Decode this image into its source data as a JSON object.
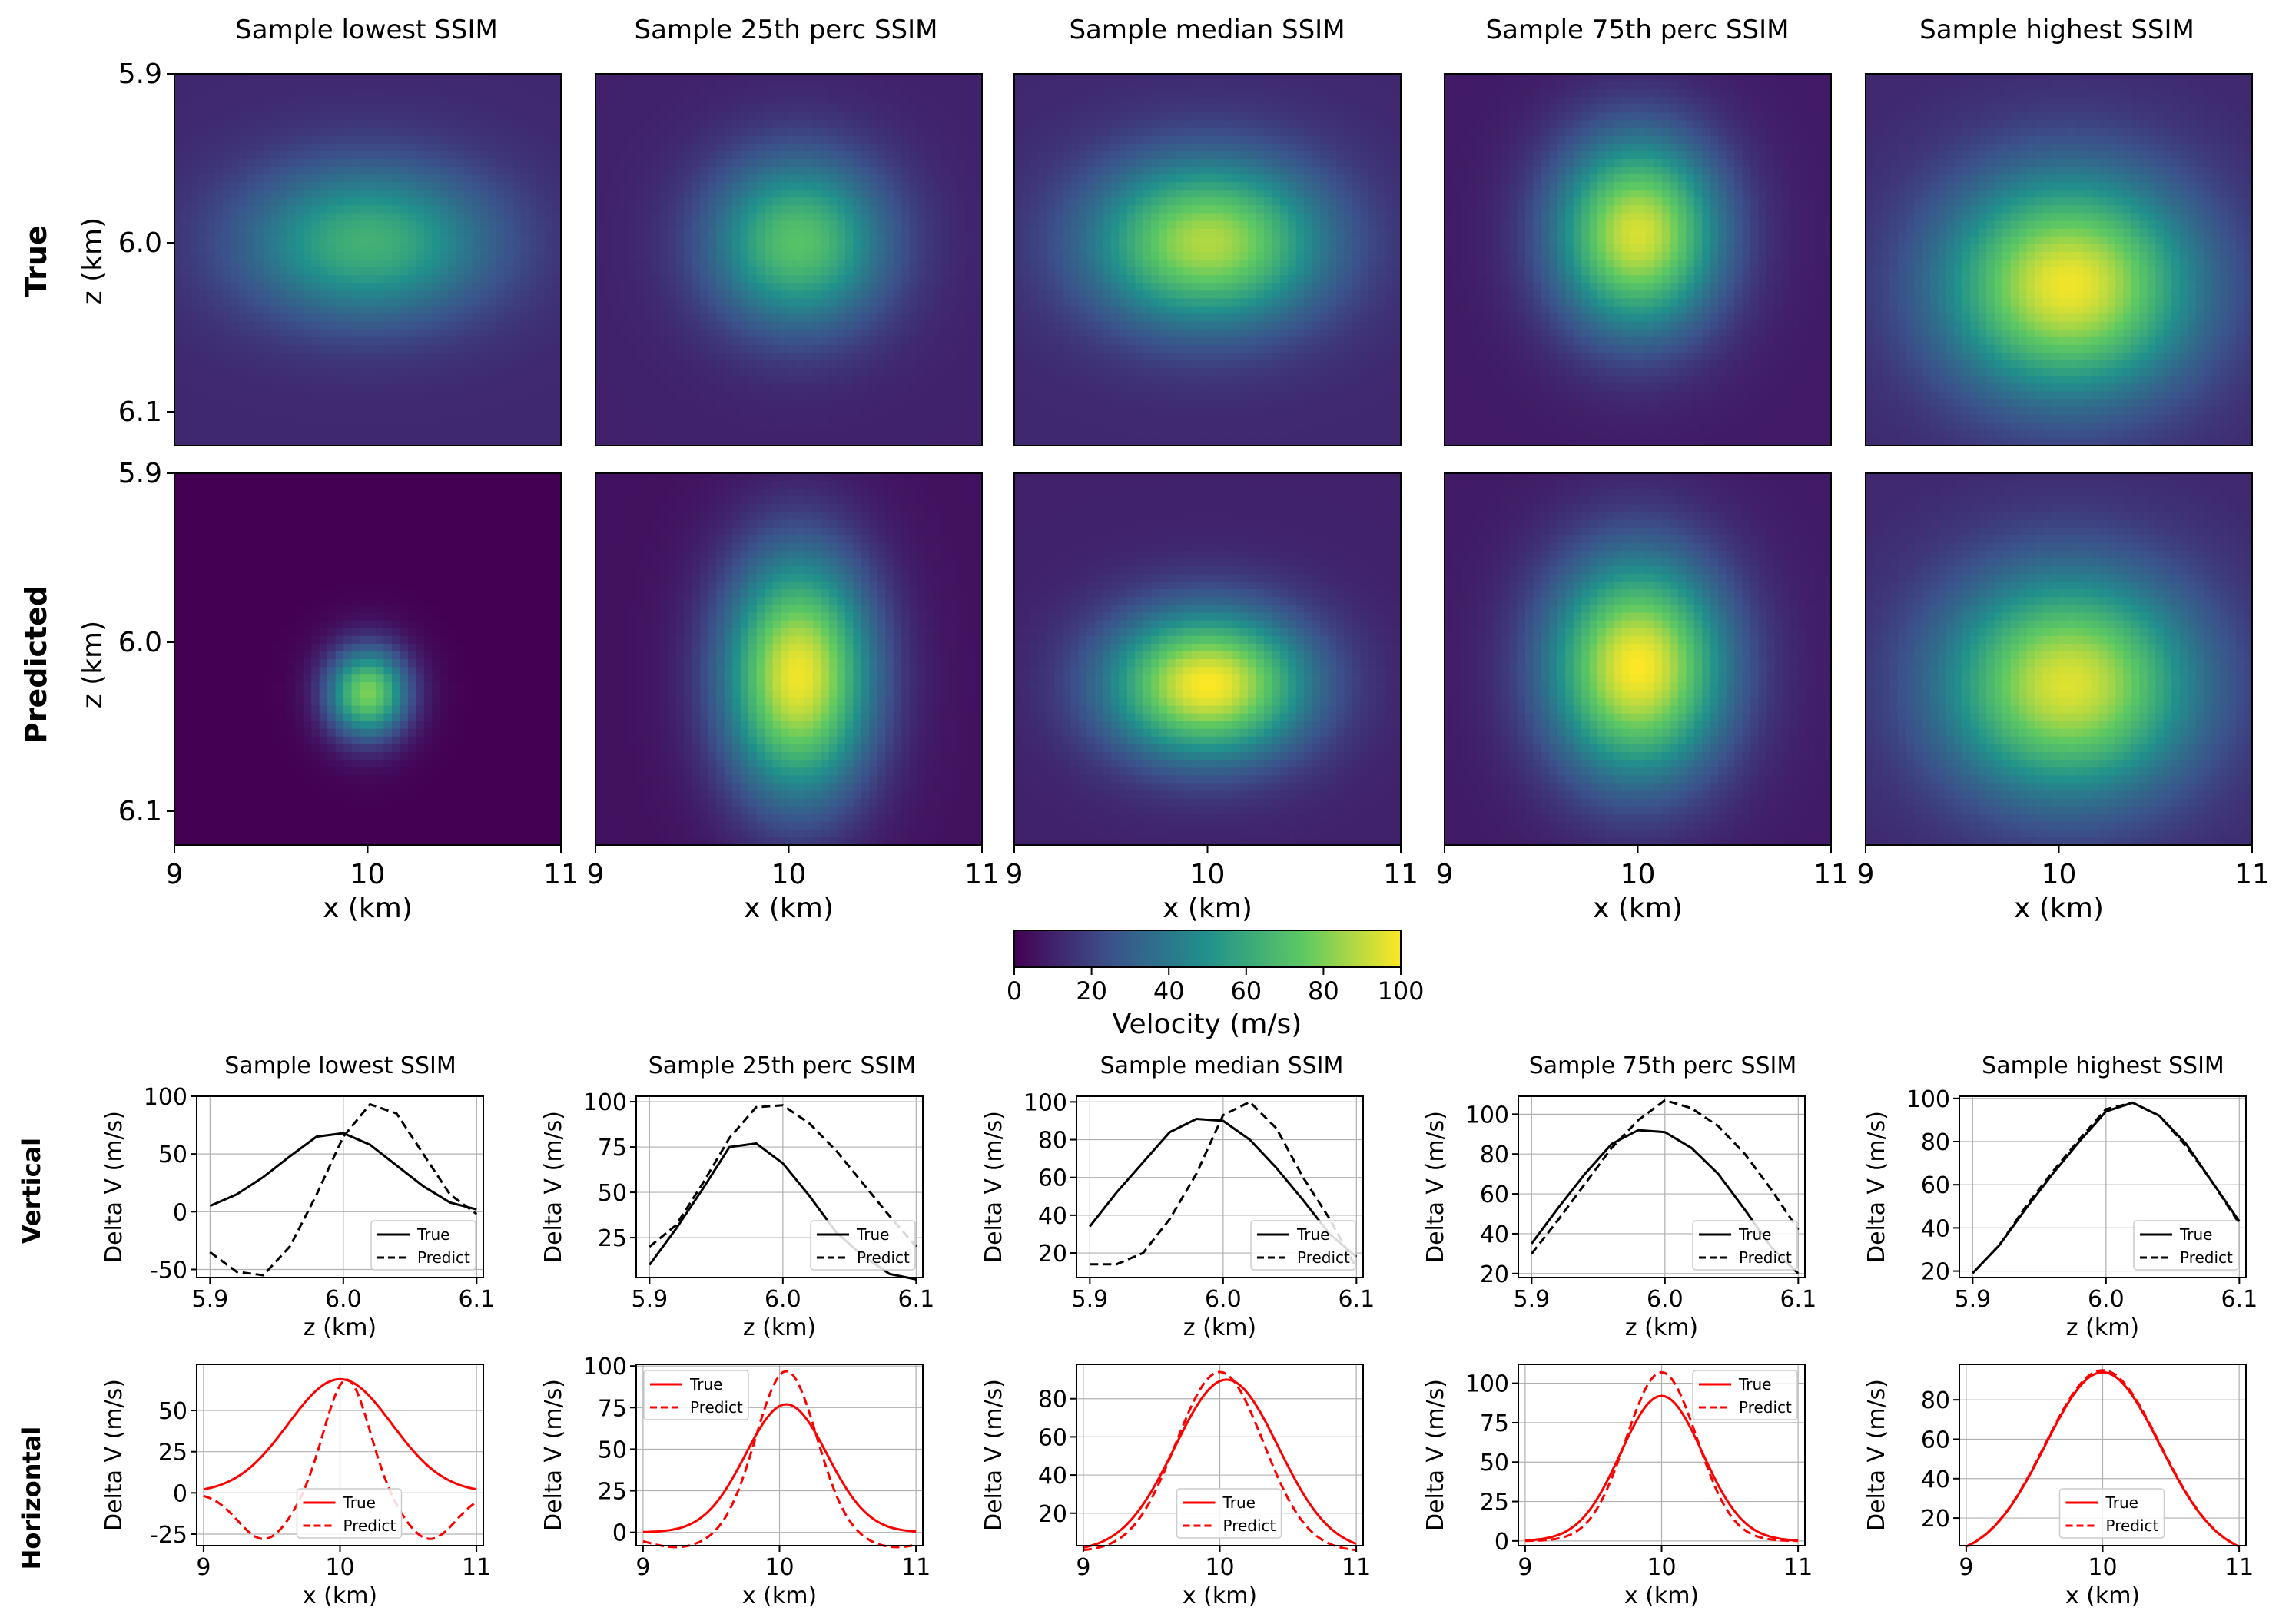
{
  "figure": {
    "column_titles": [
      "Sample lowest SSIM",
      "Sample 25th perc SSIM",
      "Sample median SSIM",
      "Sample 75th perc SSIM",
      "Sample highest SSIM"
    ],
    "row_labels": {
      "true": "True",
      "predicted": "Predicted",
      "vertical": "Vertical",
      "horizontal": "Horizontal"
    },
    "colorbar": {
      "label": "Velocity (m/s)",
      "ticks": [
        "0",
        "20",
        "40",
        "60",
        "80",
        "100"
      ],
      "range": [
        0,
        100
      ],
      "colormap": "viridis"
    }
  },
  "chart_data": [
    {
      "type": "heatmap",
      "group": "velocity-maps",
      "xlabel": "x (km)",
      "ylabel": "z (km)",
      "xlim": [
        9,
        11
      ],
      "zlim": [
        5.9,
        6.12
      ],
      "xticks": [
        "9",
        "10",
        "11"
      ],
      "zticks": [
        "5.9",
        "6.0",
        "6.1"
      ],
      "value_range": [
        0,
        100
      ],
      "colors": {
        "c0": "#440154",
        "c25": "#3b528b",
        "c50": "#21918c",
        "c75": "#5ec962",
        "c100": "#fde725"
      },
      "maps": [
        {
          "row": "true",
          "col": 0,
          "peak": 64,
          "cx": 10.0,
          "cz": 6.0,
          "sx": 0.45,
          "sz": 0.032,
          "floor": 12
        },
        {
          "row": "true",
          "col": 1,
          "peak": 72,
          "cx": 10.05,
          "cz": 6.0,
          "sx": 0.32,
          "sz": 0.035,
          "floor": 10
        },
        {
          "row": "true",
          "col": 2,
          "peak": 88,
          "cx": 10.0,
          "cz": 6.0,
          "sx": 0.42,
          "sz": 0.034,
          "floor": 12
        },
        {
          "row": "true",
          "col": 3,
          "peak": 94,
          "cx": 10.0,
          "cz": 5.995,
          "sx": 0.3,
          "sz": 0.04,
          "floor": 8
        },
        {
          "row": "true",
          "col": 4,
          "peak": 98,
          "cx": 10.05,
          "cz": 6.025,
          "sx": 0.45,
          "sz": 0.045,
          "floor": 12
        },
        {
          "row": "predicted",
          "col": 0,
          "peak": 80,
          "cx": 10.0,
          "cz": 6.03,
          "sx": 0.15,
          "sz": 0.019,
          "floor": 0
        },
        {
          "row": "predicted",
          "col": 1,
          "peak": 98,
          "cx": 10.05,
          "cz": 6.02,
          "sx": 0.27,
          "sz": 0.05,
          "floor": 5
        },
        {
          "row": "predicted",
          "col": 2,
          "peak": 100,
          "cx": 10.0,
          "cz": 6.025,
          "sx": 0.36,
          "sz": 0.03,
          "floor": 10
        },
        {
          "row": "predicted",
          "col": 3,
          "peak": 100,
          "cx": 10.0,
          "cz": 6.015,
          "sx": 0.32,
          "sz": 0.045,
          "floor": 8
        },
        {
          "row": "predicted",
          "col": 4,
          "peak": 95,
          "cx": 10.05,
          "cz": 6.025,
          "sx": 0.45,
          "sz": 0.045,
          "floor": 12
        }
      ]
    },
    {
      "type": "line",
      "group": "vertical-profiles",
      "xlabel": "z (km)",
      "ylabel": "Delta V (m/s)",
      "x": [
        5.9,
        5.92,
        5.94,
        5.96,
        5.98,
        6.0,
        6.02,
        6.04,
        6.06,
        6.08,
        6.1
      ],
      "xlim": [
        5.89,
        6.105
      ],
      "xticks": [
        "5.9",
        "6.0",
        "6.1"
      ],
      "line_color": "#000000",
      "legend": [
        "True",
        "Predict"
      ],
      "panels": [
        {
          "ylim": [
            -57,
            100
          ],
          "yticks": [
            -50,
            0,
            50,
            100
          ],
          "true": [
            5,
            15,
            30,
            48,
            65,
            68,
            58,
            40,
            22,
            8,
            2
          ],
          "predict": [
            -35,
            -52,
            -55,
            -30,
            15,
            65,
            93,
            85,
            50,
            15,
            -2
          ]
        },
        {
          "ylim": [
            3,
            103
          ],
          "yticks": [
            25,
            50,
            75,
            100
          ],
          "true": [
            10,
            30,
            52,
            75,
            77,
            66,
            48,
            28,
            15,
            5,
            2
          ],
          "predict": [
            20,
            32,
            55,
            80,
            97,
            98,
            88,
            73,
            55,
            37,
            20
          ]
        },
        {
          "ylim": [
            7,
            103
          ],
          "yticks": [
            20,
            40,
            60,
            80,
            100
          ],
          "true": [
            34,
            52,
            68,
            84,
            91,
            90,
            80,
            65,
            48,
            30,
            18
          ],
          "predict": [
            14,
            14,
            20,
            38,
            62,
            93,
            100,
            86,
            60,
            38,
            12
          ]
        },
        {
          "ylim": [
            18,
            109
          ],
          "yticks": [
            20,
            40,
            60,
            80,
            100
          ],
          "true": [
            35,
            53,
            70,
            85,
            92,
            91,
            83,
            70,
            52,
            33,
            20
          ],
          "predict": [
            30,
            47,
            65,
            83,
            97,
            107,
            103,
            94,
            80,
            62,
            42
          ]
        },
        {
          "ylim": [
            17,
            101
          ],
          "yticks": [
            20,
            40,
            60,
            80,
            100
          ],
          "true": [
            19,
            32,
            49,
            65,
            80,
            94,
            98,
            92,
            79,
            61,
            43
          ],
          "predict": [
            19,
            32,
            50,
            66,
            81,
            95,
            98,
            92,
            78,
            61,
            42
          ]
        }
      ]
    },
    {
      "type": "line",
      "group": "horizontal-profiles",
      "xlabel": "x (km)",
      "ylabel": "Delta V (m/s)",
      "xlim": [
        8.95,
        11.05
      ],
      "xticks": [
        "9",
        "10",
        "11"
      ],
      "line_color": "#ff0000",
      "legend": [
        "True",
        "Predict"
      ],
      "panels": [
        {
          "ylim": [
            -32,
            78
          ],
          "yticks": [
            -25,
            0,
            25,
            50
          ],
          "true": {
            "peak": 69,
            "center": 10.0,
            "sigma": 0.38,
            "base": 0
          },
          "predict": {
            "peak": 69,
            "center": 10.05,
            "sigma": 0.16,
            "base": 0,
            "neg": -28,
            "neg_sigma": 0.42
          },
          "legend_pos": "lower-center"
        },
        {
          "ylim": [
            -8,
            101
          ],
          "yticks": [
            0,
            25,
            50,
            75,
            100
          ],
          "true": {
            "peak": 77,
            "center": 10.05,
            "sigma": 0.3,
            "base": 0
          },
          "predict": {
            "peak": 97,
            "center": 10.05,
            "sigma": 0.22,
            "base": 0,
            "neg": -9,
            "neg_sigma": 0.55
          },
          "legend_pos": "upper-left"
        },
        {
          "ylim": [
            3,
            98
          ],
          "yticks": [
            20,
            40,
            60,
            80
          ],
          "true": {
            "peak": 90,
            "center": 10.05,
            "sigma": 0.38,
            "base": 0
          },
          "predict": {
            "peak": 94,
            "center": 10.0,
            "sigma": 0.32,
            "base": 0
          },
          "legend_pos": "lower-center"
        },
        {
          "ylim": [
            -3,
            112
          ],
          "yticks": [
            0,
            25,
            50,
            75,
            100
          ],
          "true": {
            "peak": 92,
            "center": 10.0,
            "sigma": 0.3,
            "base": 0
          },
          "predict": {
            "peak": 107,
            "center": 10.0,
            "sigma": 0.26,
            "base": 0
          },
          "legend_pos": "upper-right"
        },
        {
          "ylim": [
            6,
            98
          ],
          "yticks": [
            20,
            40,
            60,
            80
          ],
          "true": {
            "peak": 94,
            "center": 10.0,
            "sigma": 0.42,
            "base": 0
          },
          "predict": {
            "peak": 95,
            "center": 10.0,
            "sigma": 0.42,
            "base": 0
          },
          "legend_pos": "lower-center"
        }
      ]
    }
  ]
}
